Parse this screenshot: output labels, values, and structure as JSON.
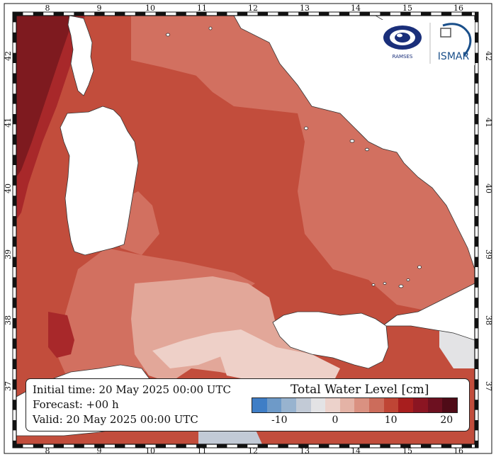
{
  "map": {
    "axes": {
      "lon_ticks": [
        "8",
        "9",
        "10",
        "11",
        "12",
        "13",
        "14",
        "15",
        "16"
      ],
      "lat_ticks": [
        "42",
        "41",
        "40",
        "39",
        "38",
        "37"
      ]
    },
    "colors": {
      "sea_very_high": "#7e1a1f",
      "sea_high": "#a8282a",
      "sea_mid": "#c24d3c",
      "sea_mid_light": "#d27060",
      "sea_light": "#e2a799",
      "sea_very_light": "#eed0c8",
      "land": "#ffffff",
      "frame_dark": "#111111"
    }
  },
  "logos": {
    "left_name": "RAMSES",
    "right_name": "ISMAR"
  },
  "info": {
    "initial_time": "Initial time: 20 May 2025 00:00 UTC",
    "forecast": "Forecast: +00 h",
    "valid": "Valid: 20 May 2025 00:00 UTC"
  },
  "legend": {
    "title": "Total Water Level [cm]",
    "colors": [
      "#3f7ec6",
      "#6e9ac8",
      "#98b3cf",
      "#c2cad6",
      "#e3e3e5",
      "#ecd2cb",
      "#e4b3a6",
      "#da9181",
      "#cc6c5b",
      "#bf4535",
      "#a81e1e",
      "#8b1522",
      "#6d1020",
      "#4f0b17"
    ],
    "tick_labels": [
      "-10",
      "0",
      "10",
      "20"
    ],
    "tick_values": [
      -10,
      0,
      10,
      20
    ],
    "range": [
      -15,
      22
    ]
  }
}
